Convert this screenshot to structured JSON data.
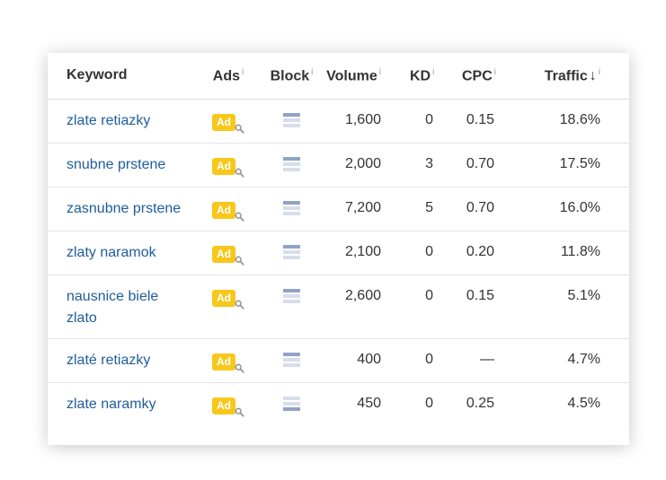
{
  "header": {
    "keyword": "Keyword",
    "ads": "Ads",
    "block": "Block",
    "volume": "Volume",
    "kd": "KD",
    "cpc": "CPC",
    "traffic": "Traffic",
    "info_mark": "i",
    "sort_arrow": "↓"
  },
  "ad_badge": "Ad",
  "icons": {
    "ad_search": "magnifier-icon",
    "block": "serp-block-icon",
    "sort": "arrow-down-icon"
  },
  "colors": {
    "link": "#1f5c99",
    "ad_badge": "#f7c81b",
    "block_icon_dark": "#8fa3c4",
    "block_icon_light": "#d7deea"
  },
  "rows": [
    {
      "keyword": "zlate retiazky",
      "volume": "1,600",
      "kd": "0",
      "cpc": "0.15",
      "traffic": "18.6%",
      "block_position": "top"
    },
    {
      "keyword": "snubne prstene",
      "volume": "2,000",
      "kd": "3",
      "cpc": "0.70",
      "traffic": "17.5%",
      "block_position": "top"
    },
    {
      "keyword": "zasnubne prstene",
      "volume": "7,200",
      "kd": "5",
      "cpc": "0.70",
      "traffic": "16.0%",
      "block_position": "top"
    },
    {
      "keyword": "zlaty naramok",
      "volume": "2,100",
      "kd": "0",
      "cpc": "0.20",
      "traffic": "11.8%",
      "block_position": "top"
    },
    {
      "keyword": "nausnice biele zlato",
      "volume": "2,600",
      "kd": "0",
      "cpc": "0.15",
      "traffic": "5.1%",
      "block_position": "top"
    },
    {
      "keyword": "zlaté retiazky",
      "volume": "400",
      "kd": "0",
      "cpc": "—",
      "traffic": "4.7%",
      "block_position": "top"
    },
    {
      "keyword": "zlate naramky",
      "volume": "450",
      "kd": "0",
      "cpc": "0.25",
      "traffic": "4.5%",
      "block_position": "bottom"
    }
  ]
}
